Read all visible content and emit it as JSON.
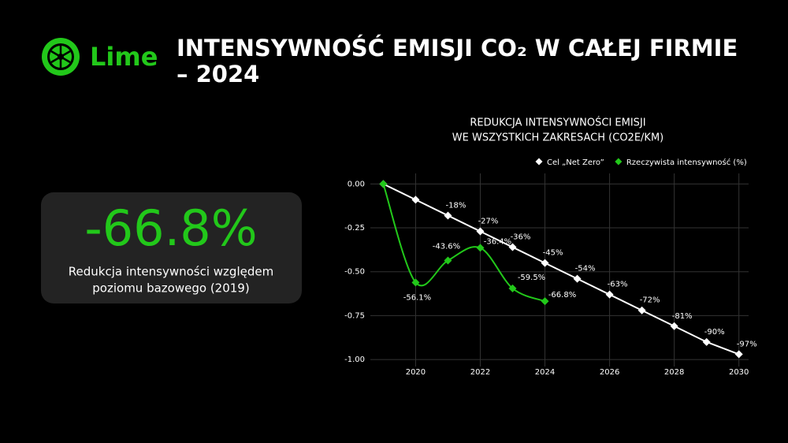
{
  "header": {
    "logo": "Lime",
    "title": [
      "INTENSYWNOŚĆ EMISJI CO₂ W CAŁEJ FIRMIE",
      "– 2024"
    ]
  },
  "stat": {
    "value": "-66.8%",
    "caption": [
      "Redukcja intensywności względem",
      "poziomu bazowego (2019)"
    ]
  },
  "chart_data": {
    "type": "line",
    "title": [
      "REDUKCJA INTENSYWNOŚCI EMISJI",
      "WE WSZYSTKICH ZAKRESACH (CO2E/KM)"
    ],
    "series": [
      {
        "name": "Cel „Net Zero”",
        "color": "#ffffff",
        "x": [
          2019,
          2020,
          2021,
          2022,
          2023,
          2024,
          2025,
          2026,
          2027,
          2028,
          2029,
          2030
        ],
        "values": [
          0,
          -0.09,
          -0.18,
          -0.27,
          -0.36,
          -0.45,
          -0.54,
          -0.63,
          -0.72,
          -0.81,
          -0.9,
          -0.97
        ],
        "value_labels": [
          null,
          null,
          "-18%",
          "-27%",
          "-36%",
          "-45%",
          "-54%",
          "-63%",
          "-72%",
          "-81%",
          "-90%",
          "-97%"
        ]
      },
      {
        "name": "Rzeczywista intensywność (%)",
        "color": "#22c81a",
        "x": [
          2019,
          2020,
          2021,
          2022,
          2023,
          2024
        ],
        "values": [
          0,
          -0.561,
          -0.436,
          -0.364,
          -0.595,
          -0.668
        ],
        "value_labels": [
          null,
          "-56.1%",
          "-43.6%",
          "-36.4%",
          "-59.5%",
          "-66.8%"
        ]
      }
    ],
    "xlim": [
      2018.6,
      2030.3
    ],
    "ylim": [
      -1.04,
      0.06
    ],
    "xticks": [
      2020,
      2022,
      2024,
      2026,
      2028,
      2030
    ],
    "yticks": [
      {
        "value": 0,
        "label": "0.00"
      },
      {
        "value": -0.25,
        "label": "-0.25"
      },
      {
        "value": -0.5,
        "label": "-0.50"
      },
      {
        "value": -0.75,
        "label": "-0.75"
      },
      {
        "value": -1,
        "label": "-1.00"
      }
    ],
    "grid": true,
    "legend": "top-right"
  }
}
